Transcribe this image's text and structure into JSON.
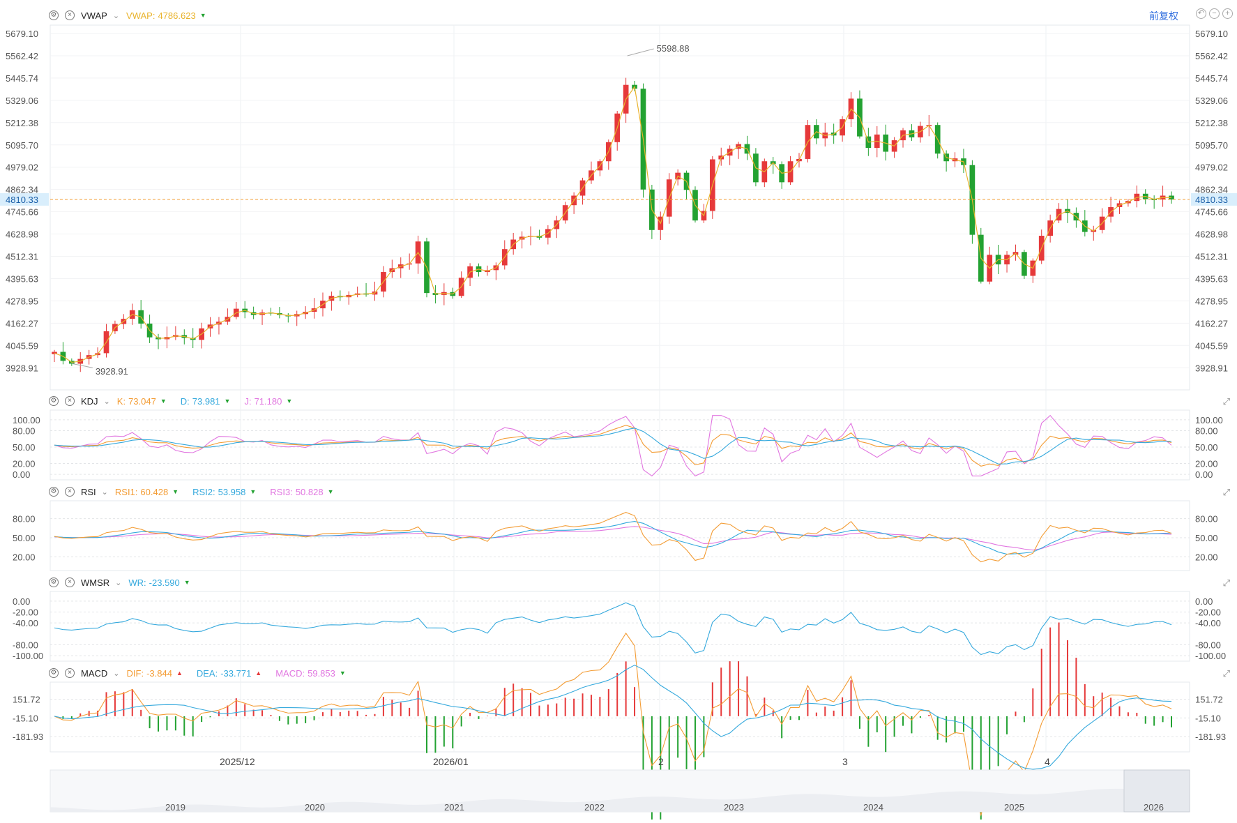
{
  "toolbar": {
    "adjust_label": "前复权"
  },
  "colors": {
    "up": "#e6393a",
    "down": "#23a232",
    "k": "#f39c34",
    "d": "#35a9dd",
    "j": "#e176e0",
    "vwap": "#e9b32c",
    "last_price_bg": "#d9eefc",
    "last_price_line": "#f39c34"
  },
  "panels": {
    "main": {
      "name": "VWAP",
      "ind": [
        {
          "label": "VWAP:",
          "value": "4786.623",
          "color": "#e9b32c",
          "dir": "down"
        }
      ],
      "ticks": [
        "5679.10",
        "5562.42",
        "5445.74",
        "5329.06",
        "5212.38",
        "5095.70",
        "4979.02",
        "4862.34",
        "4745.66",
        "4628.98",
        "4512.31",
        "4395.63",
        "4278.95",
        "4162.27",
        "4045.59",
        "3928.91"
      ],
      "last_price": "4810.33",
      "high_label": "5598.88",
      "low_label": "3928.91"
    },
    "kdj": {
      "name": "KDJ",
      "ind": [
        {
          "label": "K:",
          "value": "73.047",
          "color": "#f39c34",
          "dir": "down"
        },
        {
          "label": "D:",
          "value": "73.981",
          "color": "#35a9dd",
          "dir": "down"
        },
        {
          "label": "J:",
          "value": "71.180",
          "color": "#e176e0",
          "dir": "down"
        }
      ],
      "ticks": [
        "100.00",
        "80.00",
        "50.00",
        "20.00",
        "0.00"
      ]
    },
    "rsi": {
      "name": "RSI",
      "ind": [
        {
          "label": "RSI1:",
          "value": "60.428",
          "color": "#f39c34",
          "dir": "down"
        },
        {
          "label": "RSI2:",
          "value": "53.958",
          "color": "#35a9dd",
          "dir": "down"
        },
        {
          "label": "RSI3:",
          "value": "50.828",
          "color": "#e176e0",
          "dir": "down"
        }
      ],
      "ticks": [
        "80.00",
        "50.00",
        "20.00"
      ]
    },
    "wmsr": {
      "name": "WMSR",
      "ind": [
        {
          "label": "WR:",
          "value": "-23.590",
          "color": "#35a9dd",
          "dir": "down"
        }
      ],
      "ticks": [
        "0.00",
        "-20.00",
        "-40.00",
        "-80.00",
        "-100.00"
      ]
    },
    "macd": {
      "name": "MACD",
      "ind": [
        {
          "label": "DIF:",
          "value": "-3.844",
          "color": "#f39c34",
          "dir": "up"
        },
        {
          "label": "DEA:",
          "value": "-33.771",
          "color": "#35a9dd",
          "dir": "up"
        },
        {
          "label": "MACD:",
          "value": "59.853",
          "color": "#e176e0",
          "dir": "down"
        }
      ],
      "ticks": [
        "151.72",
        "-15.10",
        "-181.93"
      ]
    }
  },
  "xaxis": {
    "labels": [
      "2025/12",
      "2026/01",
      "2",
      "3",
      "4"
    ]
  },
  "navigator": {
    "years": [
      "2019",
      "2020",
      "2021",
      "2022",
      "2023",
      "2024",
      "2025",
      "2026"
    ]
  },
  "chart_data": {
    "type": "candlestick",
    "x_labels": [
      "2025/12",
      "2026/01",
      "2",
      "3",
      "4"
    ],
    "y_range": [
      3870,
      5740
    ],
    "close": [
      4012,
      3965,
      3950,
      3975,
      3995,
      4005,
      4120,
      4158,
      4185,
      4230,
      4160,
      4088,
      4078,
      4090,
      4100,
      4085,
      4075,
      4135,
      4155,
      4170,
      4195,
      4238,
      4220,
      4205,
      4218,
      4215,
      4205,
      4198,
      4210,
      4222,
      4240,
      4280,
      4305,
      4298,
      4310,
      4318,
      4312,
      4328,
      4430,
      4450,
      4470,
      4475,
      4590,
      4320,
      4310,
      4325,
      4305,
      4400,
      4460,
      4430,
      4440,
      4465,
      4550,
      4600,
      4615,
      4620,
      4610,
      4655,
      4700,
      4780,
      4830,
      4910,
      4962,
      5010,
      5110,
      5260,
      5410,
      5390,
      4862,
      4650,
      4720,
      4915,
      4950,
      4860,
      4700,
      4750,
      5020,
      5040,
      5075,
      5100,
      5050,
      4900,
      5010,
      4995,
      4900,
      5010,
      5022,
      5200,
      5130,
      5160,
      5145,
      5230,
      5338,
      5140,
      5080,
      5150,
      5060,
      5120,
      5172,
      5135,
      5195,
      5200,
      5050,
      5010,
      5025,
      4990,
      4625,
      4380,
      4520,
      4470,
      4520,
      4535,
      4410,
      4490,
      4620,
      4700,
      4760,
      4740,
      4700,
      4640,
      4650,
      4720,
      4770,
      4790,
      4802,
      4840,
      4812,
      4810,
      4830,
      4810
    ]
  }
}
